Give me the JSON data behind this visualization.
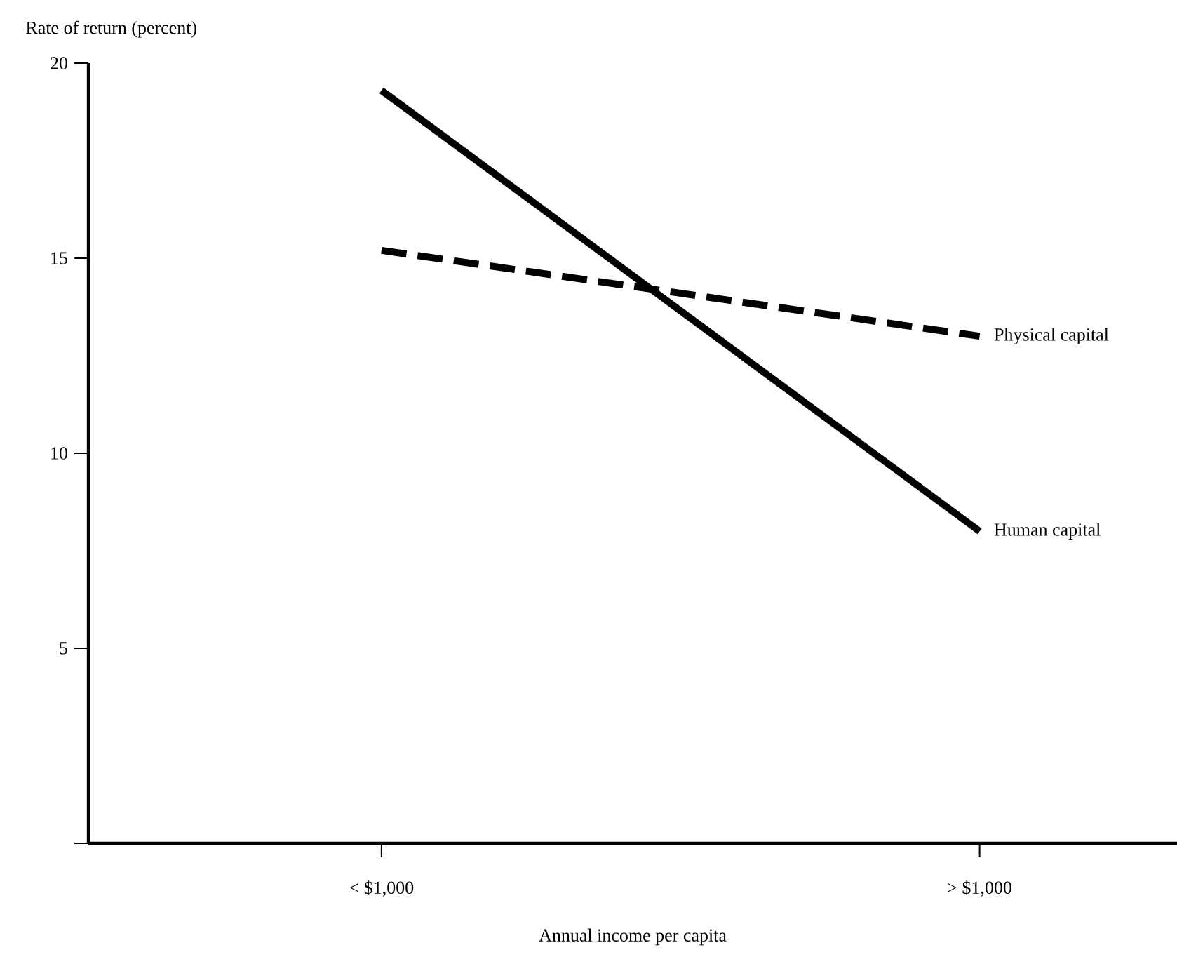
{
  "chart_data": {
    "type": "line",
    "ylabel": "Rate of return (percent)",
    "xlabel": "Annual income per capita",
    "categories": [
      "< $1,000",
      "> $1,000"
    ],
    "series": [
      {
        "name": "Human capital",
        "color": "#000000",
        "line_style": "solid",
        "values": [
          19.3,
          8.0
        ]
      },
      {
        "name": "Physical capital",
        "color": "#000000",
        "line_style": "dashed",
        "values": [
          15.2,
          13.0
        ]
      }
    ],
    "ylim": [
      0,
      20
    ],
    "yticks": [
      {
        "value": 0,
        "label": null
      },
      5,
      10,
      15,
      20
    ],
    "legend": false,
    "grid": false
  }
}
